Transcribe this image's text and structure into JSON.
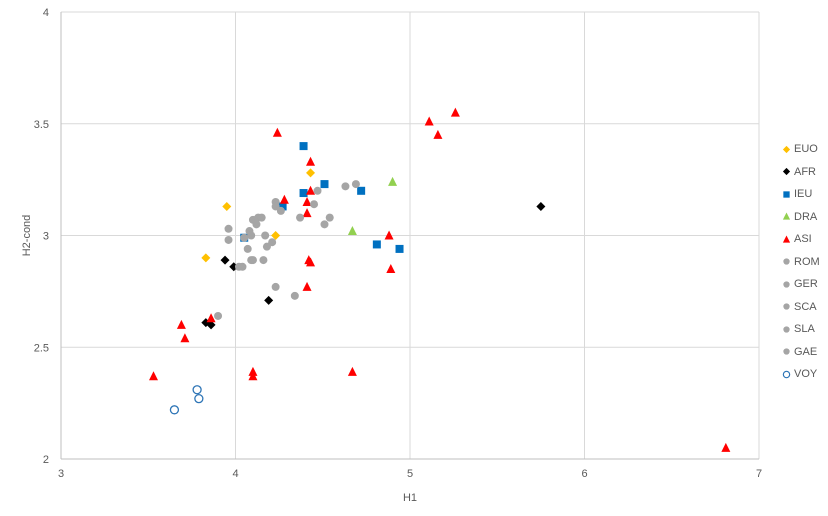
{
  "chart_data": {
    "type": "scatter",
    "title": "",
    "xlabel": "H1",
    "ylabel": "H2-cond",
    "xlim": [
      3,
      7
    ],
    "ylim": [
      2,
      4
    ],
    "xticks": [
      "3",
      "4",
      "5",
      "6",
      "7"
    ],
    "yticks": [
      "2",
      "2.5",
      "3",
      "3.5",
      "4"
    ],
    "grid": true,
    "legend_position": "right",
    "series": [
      {
        "name": "EUO",
        "marker": "diamond",
        "color": "#FFC000",
        "points": [
          [
            3.95,
            3.13
          ],
          [
            3.83,
            2.9
          ],
          [
            4.23,
            3.0
          ],
          [
            4.43,
            3.28
          ]
        ]
      },
      {
        "name": "AFR",
        "marker": "diamond",
        "color": "#000000",
        "points": [
          [
            3.94,
            2.89
          ],
          [
            3.99,
            2.86
          ],
          [
            4.19,
            2.71
          ],
          [
            3.83,
            2.61
          ],
          [
            3.86,
            2.6
          ],
          [
            5.75,
            3.13
          ]
        ]
      },
      {
        "name": "IEU",
        "marker": "square",
        "color": "#0070C0",
        "points": [
          [
            4.39,
            3.4
          ],
          [
            4.39,
            3.19
          ],
          [
            4.51,
            3.23
          ],
          [
            4.72,
            3.2
          ],
          [
            4.27,
            3.13
          ],
          [
            4.05,
            2.99
          ],
          [
            4.81,
            2.96
          ],
          [
            4.94,
            2.94
          ]
        ]
      },
      {
        "name": "DRA",
        "marker": "triangle",
        "color": "#92D050",
        "points": [
          [
            4.9,
            3.24
          ],
          [
            4.67,
            3.02
          ]
        ]
      },
      {
        "name": "ASI",
        "marker": "triangle",
        "color": "#FF0000",
        "points": [
          [
            4.24,
            3.46
          ],
          [
            4.43,
            3.33
          ],
          [
            4.43,
            3.2
          ],
          [
            4.41,
            3.15
          ],
          [
            4.41,
            3.1
          ],
          [
            4.28,
            3.16
          ],
          [
            4.42,
            2.89
          ],
          [
            4.43,
            2.88
          ],
          [
            4.41,
            2.77
          ],
          [
            4.88,
            3.0
          ],
          [
            4.89,
            2.85
          ],
          [
            5.11,
            3.51
          ],
          [
            5.16,
            3.45
          ],
          [
            5.26,
            3.55
          ],
          [
            3.69,
            2.6
          ],
          [
            3.71,
            2.54
          ],
          [
            3.86,
            2.63
          ],
          [
            3.53,
            2.37
          ],
          [
            4.1,
            2.39
          ],
          [
            4.1,
            2.37
          ],
          [
            4.67,
            2.39
          ],
          [
            6.81,
            2.05
          ]
        ]
      },
      {
        "name": "ROM",
        "marker": "circle",
        "color": "#A5A5A5",
        "points": [
          [
            4.1,
            3.07
          ],
          [
            4.13,
            3.08
          ],
          [
            4.08,
            3.02
          ],
          [
            4.09,
            3.0
          ],
          [
            4.05,
            2.99
          ]
        ]
      },
      {
        "name": "GER",
        "marker": "circle",
        "color": "#A5A5A5",
        "points": [
          [
            4.23,
            3.15
          ],
          [
            4.23,
            3.13
          ],
          [
            4.26,
            3.11
          ],
          [
            4.37,
            3.08
          ],
          [
            4.45,
            3.14
          ],
          [
            4.47,
            3.2
          ],
          [
            4.63,
            3.22
          ],
          [
            4.69,
            3.23
          ]
        ]
      },
      {
        "name": "SCA",
        "marker": "circle",
        "color": "#A5A5A5",
        "points": [
          [
            4.51,
            3.05
          ],
          [
            4.54,
            3.08
          ],
          [
            4.17,
            3.0
          ],
          [
            4.21,
            2.97
          ],
          [
            4.18,
            2.95
          ]
        ]
      },
      {
        "name": "SLA",
        "marker": "circle",
        "color": "#A5A5A5",
        "points": [
          [
            3.96,
            3.03
          ],
          [
            3.96,
            2.98
          ],
          [
            4.07,
            2.94
          ],
          [
            4.1,
            2.89
          ],
          [
            4.09,
            2.89
          ],
          [
            4.16,
            2.89
          ],
          [
            4.02,
            2.86
          ],
          [
            4.04,
            2.86
          ]
        ]
      },
      {
        "name": "GAE",
        "marker": "circle",
        "color": "#A5A5A5",
        "points": [
          [
            4.23,
            2.77
          ],
          [
            4.34,
            2.73
          ],
          [
            3.9,
            2.64
          ],
          [
            4.12,
            3.05
          ],
          [
            4.15,
            3.08
          ]
        ]
      },
      {
        "name": "VOY",
        "marker": "circle-open",
        "color": "#2E75B6",
        "points": [
          [
            3.65,
            2.22
          ],
          [
            3.78,
            2.31
          ],
          [
            3.79,
            2.27
          ]
        ]
      }
    ]
  }
}
